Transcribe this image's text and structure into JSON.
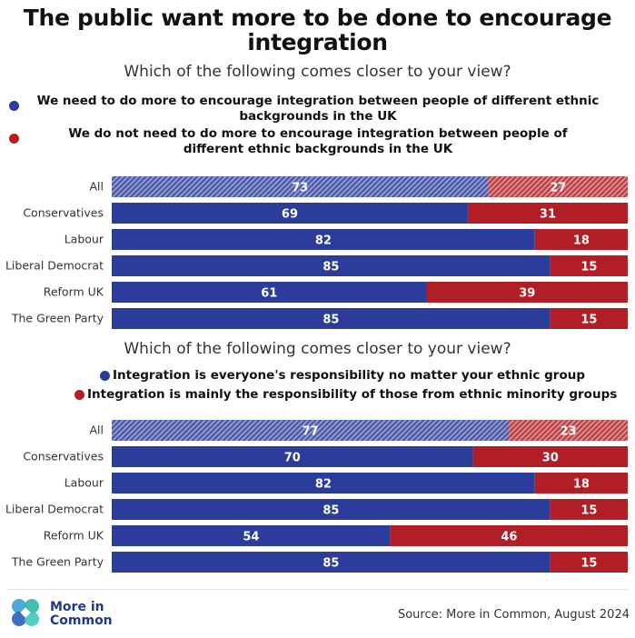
{
  "title": "The public want more to be done to encourage integration",
  "colors": {
    "blue": "#2b3c9b",
    "red": "#b21e25",
    "text": "#111111"
  },
  "footer": {
    "logo_line1": "More in",
    "logo_line2": "Common",
    "source": "Source: More in Common, August 2024"
  },
  "chart_data": [
    {
      "type": "bar",
      "orientation": "horizontal",
      "stacked": true,
      "question": "Which of the following comes closer to your view?",
      "legend": [
        "We need to do more to encourage integration between people of different ethnic backgrounds in the UK",
        "We do not need to do more to encourage integration between people of different ethnic backgrounds in the UK"
      ],
      "categories": [
        "All",
        "Conservatives",
        "Labour",
        "Liberal Democrat",
        "Reform UK",
        "The Green Party"
      ],
      "hatched_categories": [
        "All"
      ],
      "series": [
        {
          "name": "We need to do more to encourage integration between people of different ethnic backgrounds in the UK",
          "color": "#2b3c9b",
          "values": [
            73,
            69,
            82,
            85,
            61,
            85
          ]
        },
        {
          "name": "We do not need to do more to encourage integration between people of different ethnic backgrounds in the UK",
          "color": "#b21e25",
          "values": [
            27,
            31,
            18,
            15,
            39,
            15
          ]
        }
      ],
      "xlim": [
        0,
        100
      ]
    },
    {
      "type": "bar",
      "orientation": "horizontal",
      "stacked": true,
      "question": "Which of the following comes closer to your view?",
      "legend": [
        "Integration is everyone's responsibility no matter your ethnic group",
        "Integration is mainly the responsibility of those from ethnic minority groups"
      ],
      "categories": [
        "All",
        "Conservatives",
        "Labour",
        "Liberal Democrat",
        "Reform UK",
        "The Green Party"
      ],
      "hatched_categories": [
        "All"
      ],
      "series": [
        {
          "name": "Integration is everyone's responsibility no matter your ethnic group",
          "color": "#2b3c9b",
          "values": [
            77,
            70,
            82,
            85,
            54,
            85
          ]
        },
        {
          "name": "Integration is mainly the responsibility of those from ethnic minority groups",
          "color": "#b21e25",
          "values": [
            23,
            30,
            18,
            15,
            46,
            15
          ]
        }
      ],
      "xlim": [
        0,
        100
      ]
    }
  ]
}
